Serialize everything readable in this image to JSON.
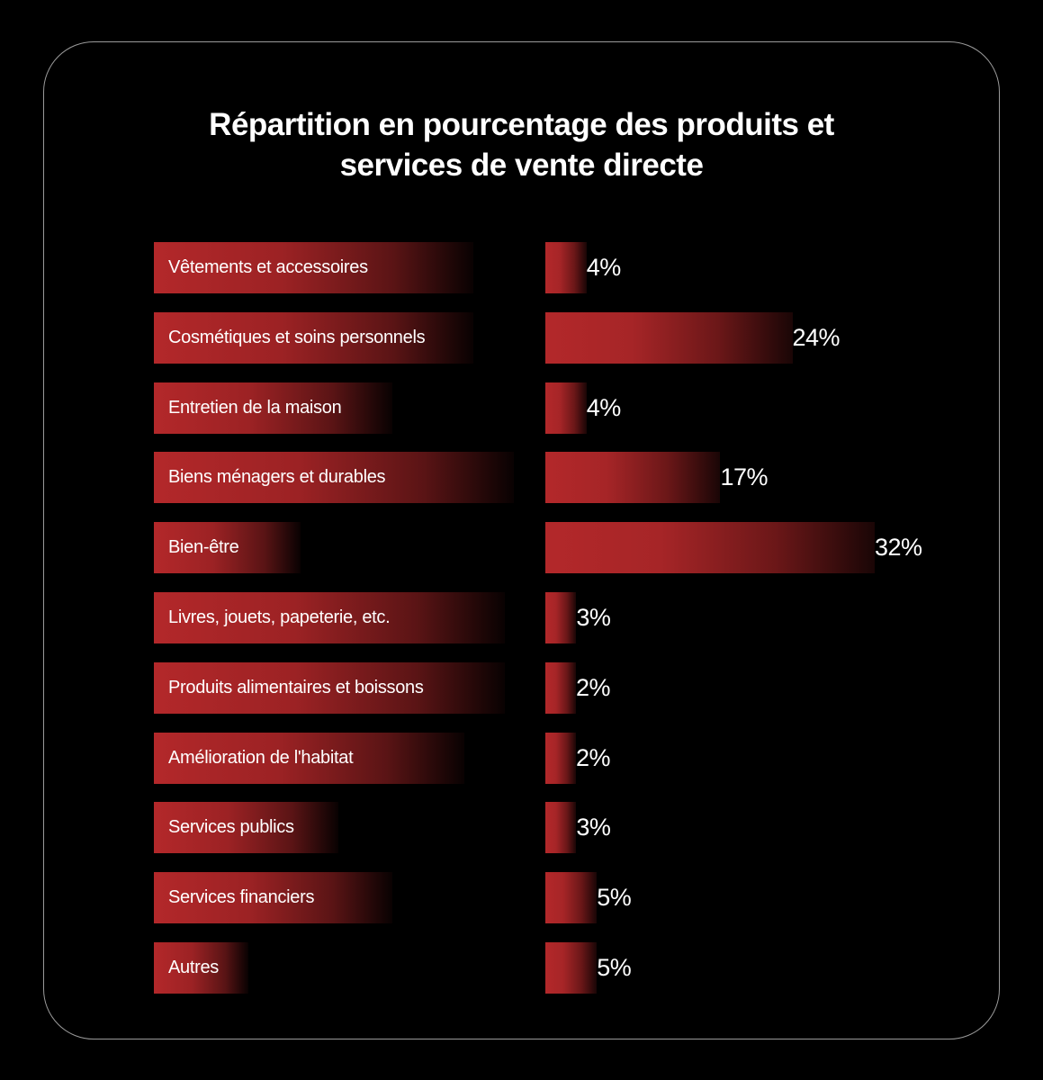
{
  "title_lines": [
    "Répartition en pourcentage des produits et",
    "services de vente directe"
  ],
  "chart_data": {
    "type": "bar",
    "orientation": "horizontal",
    "title": "Répartition en pourcentage des produits et services de vente directe",
    "categories": [
      "Vêtements et accessoires",
      "Cosmétiques et soins personnels",
      "Entretien de la maison",
      "Biens ménagers et durables",
      "Bien-être",
      "Livres, jouets, papeterie, etc.",
      "Produits alimentaires et boissons",
      "Amélioration de l'habitat",
      "Services publics",
      "Services financiers",
      "Autres"
    ],
    "values": [
      4,
      24,
      4,
      17,
      32,
      3,
      2,
      2,
      3,
      5,
      5
    ],
    "value_labels": [
      "4%",
      "24%",
      "4%",
      "17%",
      "32%",
      "3%",
      "2%",
      "2%",
      "3%",
      "5%",
      "5%"
    ],
    "xlabel": "",
    "ylabel": "",
    "grid": false,
    "legend": "none",
    "colors": {
      "bar": "#b3282a",
      "background": "#000000",
      "text": "#ffffff"
    }
  }
}
